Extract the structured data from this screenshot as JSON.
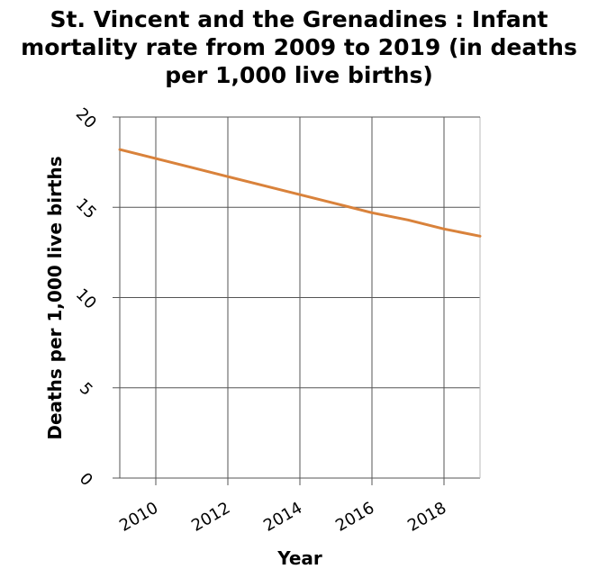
{
  "chart_data": {
    "type": "line",
    "title_lines": [
      "St. Vincent and the Grenadines : Infant",
      "mortality rate from 2009 to 2019 (in deaths",
      "per 1,000 live births)"
    ],
    "xlabel": "Year",
    "ylabel": "Deaths per 1,000 live births",
    "xlim": [
      2009,
      2019
    ],
    "ylim": [
      0,
      20
    ],
    "x_ticks": [
      2010,
      2012,
      2014,
      2016,
      2018
    ],
    "y_ticks": [
      0,
      5,
      10,
      15,
      20
    ],
    "grid": true,
    "series": [
      {
        "color": "#d9823b",
        "x": [
          2009,
          2010,
          2011,
          2012,
          2013,
          2014,
          2015,
          2016,
          2017,
          2018,
          2019
        ],
        "y": [
          18.2,
          17.7,
          17.2,
          16.7,
          16.2,
          15.7,
          15.2,
          14.7,
          14.3,
          13.8,
          13.4
        ]
      }
    ]
  }
}
